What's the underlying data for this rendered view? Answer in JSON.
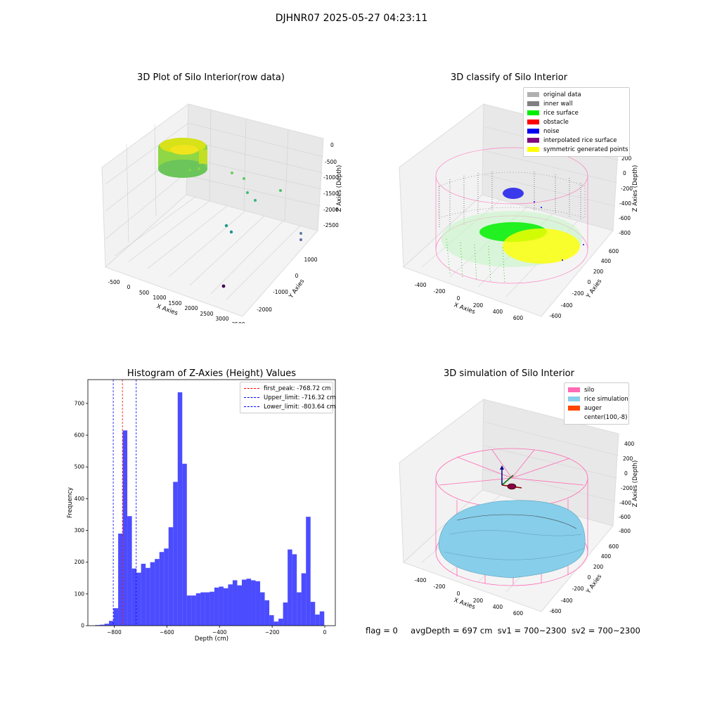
{
  "figure": {
    "suptitle": "DJHNR07 2025-05-27 04:23:11",
    "status_line": {
      "flag": "flag = 0",
      "avg_depth": "avgDepth = 697 cm",
      "sv1": "sv1 = 700~2300",
      "sv2": "sv2 = 700~2300"
    }
  },
  "panels": {
    "raw": {
      "title": "3D Plot of Silo Interior(row data)",
      "xlabel": "X Axies",
      "ylabel": "Y Axies",
      "zlabel": "Z Axies (Depth)",
      "xticks": [
        "-500",
        "0",
        "500",
        "1000",
        "1500",
        "2000",
        "2500",
        "3000",
        "3500"
      ],
      "yticks": [
        "-2000",
        "-1000",
        "0",
        "1000"
      ],
      "zticks": [
        "0",
        "-500",
        "-1000",
        "-1500",
        "-2000",
        "-2500"
      ]
    },
    "classify": {
      "title": "3D classify of Silo Interior",
      "xlabel": "X Axies",
      "ylabel": "Y Axies",
      "zlabel": "Z Axies (Depth)",
      "xticks": [
        "-400",
        "-200",
        "0",
        "200",
        "400",
        "600"
      ],
      "yticks": [
        "-600",
        "-400",
        "-200",
        "0",
        "200",
        "400",
        "600"
      ],
      "zticks": [
        "200",
        "0",
        "-200",
        "-400",
        "-600",
        "-800"
      ],
      "legend": [
        {
          "label": "original data",
          "color": "#b0b0b0"
        },
        {
          "label": "inner wall",
          "color": "#808080"
        },
        {
          "label": "rice surface",
          "color": "#00ee00"
        },
        {
          "label": "obstacle",
          "color": "#ff0000"
        },
        {
          "label": "noise",
          "color": "#0000ee"
        },
        {
          "label": "interpolated rice surface",
          "color": "#800080"
        },
        {
          "label": "symmetric generated points",
          "color": "#ffff00"
        }
      ]
    },
    "simulation": {
      "title": "3D simulation of Silo Interior",
      "xlabel": "X Axies",
      "ylabel": "Y Axies",
      "zlabel": "Z Axies (Depth)",
      "xticks": [
        "-400",
        "-200",
        "0",
        "200",
        "400",
        "600"
      ],
      "yticks": [
        "-600",
        "-400",
        "-200",
        "0",
        "200",
        "400",
        "600"
      ],
      "zticks": [
        "400",
        "200",
        "0",
        "-200",
        "-400",
        "-600",
        "-800"
      ],
      "legend": [
        {
          "label": "silo",
          "color": "#ff69b4"
        },
        {
          "label": "rice simulation",
          "color": "#87ceeb"
        },
        {
          "label": "auger",
          "color": "#ff4500"
        },
        {
          "label": "center(100,-8)",
          "color": "#ffffff"
        }
      ]
    }
  },
  "chart_data": [
    {
      "type": "bar",
      "title": "Histogram of Z-Axies (Height) Values",
      "xlabel": "Depth (cm)",
      "ylabel": "Frequency",
      "xlim": [
        -900,
        40
      ],
      "ylim": [
        0,
        775
      ],
      "xticks": [
        -800,
        -600,
        -400,
        -200,
        0
      ],
      "yticks": [
        0,
        100,
        200,
        300,
        400,
        500,
        600,
        700
      ],
      "bar_color": "#0000ff",
      "bin_start": -872,
      "bin_width": 17.4,
      "values": [
        2,
        3,
        6,
        15,
        55,
        290,
        615,
        345,
        180,
        167,
        195,
        182,
        200,
        210,
        232,
        243,
        310,
        453,
        735,
        510,
        95,
        95,
        102,
        105,
        105,
        107,
        120,
        123,
        118,
        130,
        143,
        127,
        145,
        148,
        143,
        140,
        105,
        80,
        33,
        13,
        22,
        73,
        240,
        225,
        105,
        165,
        343,
        75,
        35,
        45
      ],
      "reference_lines": [
        {
          "label": "first_peak: -768.72 cm",
          "x": -768.72,
          "color": "#ff0000"
        },
        {
          "label": "Upper_limit: -716.32 cm",
          "x": -716.32,
          "color": "#0000ff"
        },
        {
          "label": "Lower_limit: -803.64 cm",
          "x": -803.64,
          "color": "#0000ff"
        }
      ],
      "legend_position": "upper right",
      "grid": false
    }
  ]
}
